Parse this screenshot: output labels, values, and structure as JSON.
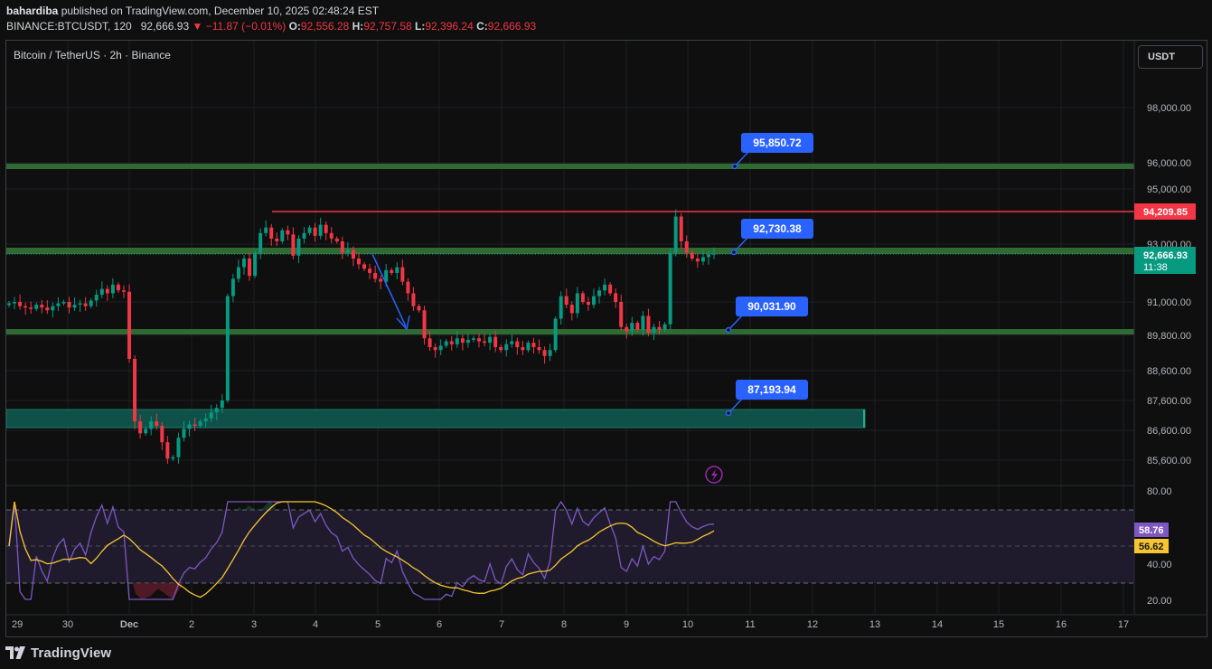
{
  "header": {
    "author": "bahardiba",
    "published_text": "published on TradingView.com, December 10, 2025 02:48:24 EST",
    "symbol": "BINANCE:BTCUSDT, 120",
    "last_price": "92,666.93",
    "change": "−11.87 (−0.01%)",
    "open_label": "O:",
    "open": "92,556.28",
    "high_label": "H:",
    "high": "92,757.58",
    "low_label": "L:",
    "low": "92,396.24",
    "close_label": "C:",
    "close": "92,666.93"
  },
  "chart": {
    "title": "Bitcoin / TetherUS · 2h · Binance",
    "currency_button": "USDT",
    "price_axis": [
      "98,000.00",
      "96,000.00",
      "95,000.00",
      "93,000.00",
      "91,000.00",
      "89,800.00",
      "88,600.00",
      "87,600.00",
      "86,600.00",
      "85,600.00"
    ],
    "rsi_axis": [
      "80.00",
      "40.00",
      "20.00"
    ],
    "time_axis": [
      "29",
      "30",
      "Dec",
      "2",
      "3",
      "4",
      "5",
      "6",
      "7",
      "8",
      "9",
      "10",
      "11",
      "12",
      "13",
      "14",
      "15",
      "16",
      "17"
    ],
    "callouts": [
      "95,850.72",
      "92,730.38",
      "90,031.90",
      "87,193.94"
    ],
    "resistance_label": "94,209.85",
    "current_price": "92,666.93",
    "countdown": "11:38",
    "rsi_value": "58.76",
    "rsi_ma_value": "56.62"
  },
  "chart_data": {
    "type": "candlestick",
    "title": "Bitcoin / TetherUS · 2h · Binance",
    "y_axis_ticks": [
      98000,
      96000,
      95000,
      93000,
      91000,
      89800,
      88600,
      87600,
      86600,
      85600
    ],
    "x_axis_ticks": [
      "29",
      "30",
      "Dec",
      "2",
      "3",
      "4",
      "5",
      "6",
      "7",
      "8",
      "9",
      "10",
      "11",
      "12",
      "13",
      "14",
      "15",
      "16",
      "17"
    ],
    "horizontal_levels": [
      95850.72,
      92730.38,
      90031.9
    ],
    "zone": [
      86600,
      87193.94
    ],
    "resistance": 94209.85,
    "last_price": 92666.93,
    "close_series": [
      90950,
      91000,
      90850,
      90800,
      90750,
      90900,
      90800,
      90700,
      90850,
      90950,
      91000,
      90800,
      90900,
      90950,
      90850,
      91050,
      91250,
      91450,
      91300,
      91600,
      91400,
      91350,
      89000,
      86900,
      86500,
      86650,
      86900,
      86750,
      86200,
      85650,
      85700,
      86350,
      86650,
      86800,
      86750,
      86900,
      87000,
      87200,
      87350,
      87600,
      91200,
      91800,
      92200,
      92500,
      91900,
      92700,
      93400,
      93600,
      93200,
      93100,
      93500,
      93350,
      92600,
      93200,
      93400,
      93600,
      93300,
      93700,
      93400,
      93200,
      93100,
      92700,
      92800,
      92500,
      92300,
      92150,
      92000,
      91800,
      91700,
      92100,
      92000,
      92200,
      91700,
      91300,
      90850,
      90700,
      89700,
      89400,
      89300,
      89450,
      89600,
      89500,
      89700,
      89550,
      89650,
      89700,
      89600,
      89550,
      89750,
      89400,
      89300,
      89500,
      89600,
      89400,
      89300,
      89550,
      89400,
      89300,
      89100,
      89300,
      90400,
      91200,
      90900,
      90600,
      91300,
      91000,
      90900,
      91200,
      91400,
      91600,
      91300,
      91000,
      90100,
      89950,
      90250,
      90000,
      90500,
      89900,
      90100,
      90000,
      90200,
      92700,
      94000,
      93100,
      92700,
      92500,
      92400,
      92550,
      92650,
      92667
    ],
    "rsi": {
      "value": 58.76,
      "ma": 56.62,
      "levels": [
        70,
        50,
        30
      ],
      "axis_ticks": [
        80,
        40,
        20
      ]
    }
  }
}
